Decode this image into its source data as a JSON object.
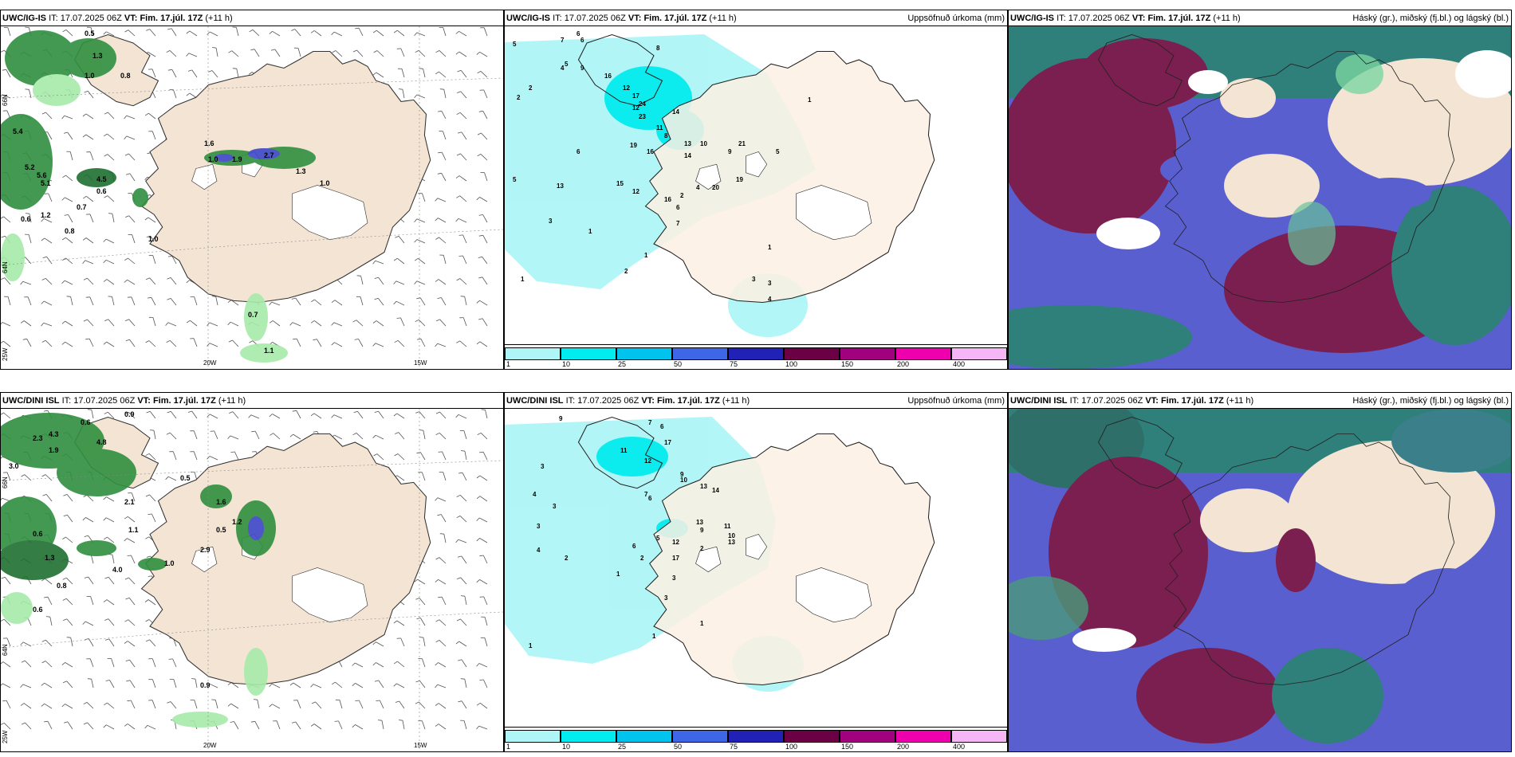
{
  "rows": [
    {
      "model": "UWC/IG-IS",
      "it_label": "IT:",
      "it_value": "17.07.2025 06Z",
      "vt_label": "VT:",
      "vt_value": "Fim. 17.júl. 17Z",
      "lead": "(+11 h)",
      "rain_numbers": [
        "5",
        "7",
        "6",
        "6",
        "2",
        "8",
        "5",
        "2",
        "9",
        "4",
        "16",
        "12",
        "17",
        "24",
        "23",
        "12",
        "14",
        "11",
        "8",
        "19",
        "16",
        "10",
        "14",
        "13",
        "21",
        "20",
        "5",
        "19",
        "9",
        "6",
        "13",
        "15",
        "12",
        "16",
        "2",
        "4",
        "6",
        "7",
        "3",
        "5",
        "1",
        "1",
        "2",
        "1",
        "4",
        "3",
        "3",
        "1",
        "1"
      ],
      "precip_values": [
        "0.5",
        "1.3",
        "1.0",
        "0.8",
        "5.4",
        "5.2",
        "5.6",
        "5.1",
        "4.5",
        "0.6",
        "1.2",
        "0.7",
        "0.6",
        "0.8",
        "1.6",
        "1.0",
        "1.9",
        "2.7",
        "1.3",
        "1.0",
        "1.0",
        "0.7",
        "1.1"
      ]
    },
    {
      "model": "UWC/DINI ISL",
      "it_label": "IT:",
      "it_value": "17.07.2025 06Z",
      "vt_label": "VT:",
      "vt_value": "Fim. 17.júl. 17Z",
      "lead": "(+11 h)",
      "rain_numbers": [
        "9",
        "7",
        "6",
        "17",
        "11",
        "12",
        "3",
        "4",
        "9",
        "10",
        "14",
        "13",
        "7",
        "6",
        "13",
        "9",
        "11",
        "10",
        "13",
        "2",
        "12",
        "17",
        "5",
        "6",
        "3",
        "3",
        "4",
        "2",
        "1",
        "2",
        "3",
        "3",
        "1",
        "1",
        "1"
      ],
      "precip_values": [
        "0.9",
        "0.6",
        "4.3",
        "2.3",
        "4.8",
        "1.9",
        "3.0",
        "0.5",
        "2.1",
        "1.6",
        "1.2",
        "2.9",
        "0.5",
        "1.1",
        "0.6",
        "1.3",
        "1.0",
        "4.0",
        "0.8",
        "0.6",
        "0.9"
      ]
    }
  ],
  "rain_title": "Uppsöfnuð úrkoma (mm)",
  "cloud_title": "Háský (gr.), miðský (fj.bl.) og lágský (bl.)",
  "legend": {
    "colors": [
      "#aef5f7",
      "#00ecef",
      "#00c4ee",
      "#3d67e6",
      "#2121b5",
      "#6b0044",
      "#a1007e",
      "#ef00ae",
      "#f5b6f5"
    ],
    "ticks": [
      "1",
      "10",
      "25",
      "50",
      "75",
      "100",
      "150",
      "200",
      "400"
    ]
  },
  "axis_labels": {
    "lon_20": "20W",
    "lon_15": "15W",
    "lat_top_row1": "66N",
    "lat_mid_row1": "64N",
    "lon_left_row1": "25W",
    "lat_top_row2": "66N",
    "lat_mid_row2": "64N",
    "lon_left_row2": "25W"
  }
}
